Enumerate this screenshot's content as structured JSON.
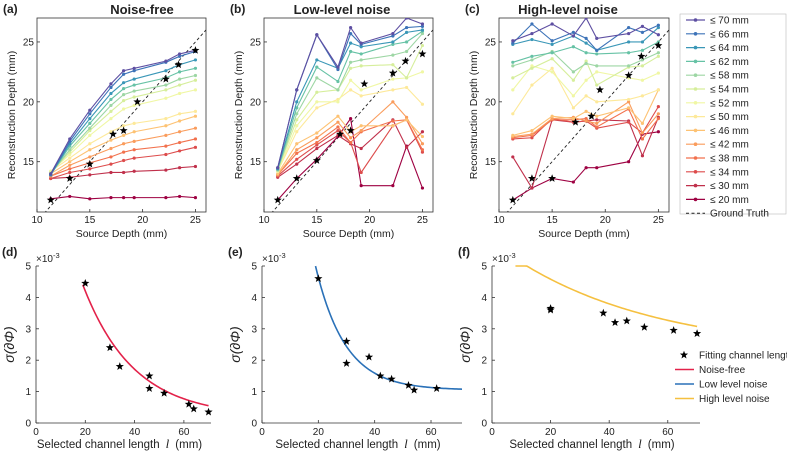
{
  "top_charts": [
    {
      "panel_label": "(a)",
      "title": "Noise-free",
      "type": "line",
      "xlabel": "Source Depth (mm)",
      "ylabel": "Reconstruction Depth (mm)",
      "xlim": [
        10,
        26
      ],
      "ylim": [
        10.8,
        27
      ],
      "xticks": [
        10,
        15,
        20,
        25
      ],
      "yticks": [
        15,
        20,
        25
      ],
      "x": [
        11.3,
        13.1,
        15.0,
        17.0,
        18.2,
        19.2,
        22.2,
        23.5,
        25.0
      ],
      "ground_truth_stars": [
        [
          11.3,
          11.8
        ],
        [
          13.1,
          13.6
        ],
        [
          15.0,
          14.8
        ],
        [
          17.2,
          17.3
        ],
        [
          18.2,
          17.6
        ],
        [
          19.5,
          20.0
        ],
        [
          22.2,
          21.9
        ],
        [
          23.4,
          23.1
        ],
        [
          25.0,
          24.3
        ]
      ],
      "series": [
        {
          "name": "≤ 70 mm",
          "values": [
            14.0,
            16.9,
            19.3,
            21.5,
            22.6,
            22.8,
            23.4,
            24.0,
            24.3
          ]
        },
        {
          "name": "≤ 66 mm",
          "values": [
            13.9,
            16.7,
            19.0,
            21.2,
            22.3,
            22.6,
            23.3,
            23.8,
            24.2
          ]
        },
        {
          "name": "≤ 64 mm",
          "values": [
            13.9,
            16.5,
            18.6,
            20.7,
            21.6,
            21.9,
            22.6,
            23.1,
            23.5
          ]
        },
        {
          "name": "≤ 62 mm",
          "values": [
            13.9,
            16.3,
            18.2,
            20.2,
            21.1,
            21.4,
            22.0,
            22.5,
            22.8
          ]
        },
        {
          "name": "≤ 58 mm",
          "values": [
            14.0,
            16.0,
            17.8,
            19.7,
            20.6,
            20.9,
            21.4,
            21.9,
            22.2
          ]
        },
        {
          "name": "≤ 54 mm",
          "values": [
            14.1,
            15.8,
            17.6,
            19.2,
            20.1,
            20.4,
            21.0,
            21.4,
            21.8
          ]
        },
        {
          "name": "≤ 52 mm",
          "values": [
            14.2,
            15.6,
            17.2,
            18.6,
            19.4,
            19.7,
            20.3,
            20.7,
            21.0
          ]
        },
        {
          "name": "≤ 50 mm",
          "values": [
            14.2,
            15.3,
            16.5,
            17.5,
            18.0,
            18.2,
            18.6,
            19.0,
            19.2
          ]
        },
        {
          "name": "≤ 46 mm",
          "values": [
            14.0,
            15.0,
            16.0,
            16.8,
            17.2,
            17.5,
            18.0,
            18.4,
            18.8
          ]
        },
        {
          "name": "≤ 42 mm",
          "values": [
            13.8,
            14.7,
            15.4,
            16.1,
            16.5,
            16.7,
            17.2,
            17.5,
            17.8
          ]
        },
        {
          "name": "≤ 38 mm",
          "values": [
            13.8,
            14.4,
            14.9,
            15.4,
            15.8,
            16.0,
            16.3,
            16.6,
            16.9
          ]
        },
        {
          "name": "≤ 34 mm",
          "values": [
            13.6,
            14.1,
            14.4,
            14.8,
            15.1,
            15.3,
            15.6,
            15.9,
            16.2
          ]
        },
        {
          "name": "≤ 30 mm",
          "values": [
            13.6,
            13.7,
            13.9,
            14.1,
            14.1,
            14.2,
            14.3,
            14.5,
            14.6
          ]
        },
        {
          "name": "≤ 20 mm",
          "values": [
            11.9,
            12.1,
            11.9,
            12.0,
            12.0,
            12.0,
            12.0,
            12.1,
            12.0
          ]
        }
      ]
    },
    {
      "panel_label": "(b)",
      "title": "Low-level noise",
      "type": "line",
      "xlabel": "Source Depth (mm)",
      "ylabel": "Reconstruction Depth (mm)",
      "xlim": [
        10,
        26
      ],
      "ylim": [
        10.8,
        27
      ],
      "xticks": [
        10,
        15,
        20,
        25
      ],
      "yticks": [
        15,
        20,
        25
      ],
      "x": [
        11.3,
        13.1,
        15.0,
        17.0,
        18.2,
        19.2,
        22.2,
        23.5,
        25.0
      ],
      "ground_truth_stars": [
        [
          11.3,
          11.8
        ],
        [
          13.1,
          13.6
        ],
        [
          15.0,
          15.1
        ],
        [
          17.2,
          17.3
        ],
        [
          18.2,
          17.6
        ],
        [
          19.5,
          21.5
        ],
        [
          22.2,
          22.4
        ],
        [
          23.4,
          23.4
        ],
        [
          25.0,
          24.0
        ]
      ],
      "series": [
        {
          "name": "≤ 70 mm",
          "values": [
            14.5,
            21.0,
            25.6,
            22.9,
            26.2,
            24.9,
            25.7,
            27.0,
            26.5
          ]
        },
        {
          "name": "≤ 66 mm",
          "values": [
            14.5,
            21.0,
            25.6,
            22.7,
            25.7,
            24.8,
            25.5,
            26.2,
            26.3
          ]
        },
        {
          "name": "≤ 64 mm",
          "values": [
            14.4,
            20.0,
            23.5,
            22.8,
            24.9,
            24.6,
            25.0,
            25.8,
            26.0
          ]
        },
        {
          "name": "≤ 62 mm",
          "values": [
            14.4,
            19.5,
            22.9,
            21.7,
            24.2,
            24.0,
            24.8,
            25.0,
            25.9
          ]
        },
        {
          "name": "≤ 58 mm",
          "values": [
            14.3,
            19.0,
            22.0,
            21.0,
            23.3,
            23.5,
            23.9,
            24.2,
            25.7
          ]
        },
        {
          "name": "≤ 54 mm",
          "values": [
            14.3,
            18.5,
            20.8,
            21.0,
            22.8,
            23.0,
            23.1,
            22.0,
            24.7
          ]
        },
        {
          "name": "≤ 52 mm",
          "values": [
            14.2,
            18.0,
            20.0,
            20.0,
            21.8,
            21.0,
            21.9,
            22.0,
            22.5
          ]
        },
        {
          "name": "≤ 50 mm",
          "values": [
            14.2,
            17.5,
            19.5,
            20.2,
            21.0,
            20.5,
            21.0,
            21.2,
            19.8
          ]
        },
        {
          "name": "≤ 46 mm",
          "values": [
            14.0,
            16.5,
            17.4,
            18.8,
            17.5,
            18.0,
            18.0,
            18.5,
            17.1
          ]
        },
        {
          "name": "≤ 42 mm",
          "values": [
            13.9,
            16.0,
            17.0,
            18.3,
            17.0,
            17.6,
            20.0,
            18.7,
            16.5
          ]
        },
        {
          "name": "≤ 38 mm",
          "values": [
            13.9,
            15.7,
            16.6,
            17.9,
            16.6,
            17.5,
            18.4,
            18.5,
            16.0
          ]
        },
        {
          "name": "≤ 34 mm",
          "values": [
            13.8,
            15.2,
            16.4,
            17.6,
            16.6,
            14.1,
            18.0,
            18.5,
            15.8
          ]
        },
        {
          "name": "≤ 30 mm",
          "values": [
            13.7,
            14.8,
            16.1,
            17.2,
            16.5,
            16.1,
            18.5,
            16.2,
            17.5
          ]
        },
        {
          "name": "≤ 20 mm",
          "values": [
            11.8,
            13.6,
            15.2,
            17.1,
            18.6,
            13.0,
            13.0,
            16.3,
            12.8
          ]
        }
      ]
    },
    {
      "panel_label": "(c)",
      "title": "High-level noise",
      "type": "line",
      "xlabel": "Source Depth (mm)",
      "ylabel": "Reconstruction Depth (mm)",
      "xlim": [
        10,
        26
      ],
      "ylim": [
        10.8,
        27
      ],
      "xticks": [
        10,
        15,
        20,
        25
      ],
      "yticks": [
        15,
        20,
        25
      ],
      "x": [
        11.3,
        13.1,
        15.0,
        17.0,
        18.2,
        19.2,
        22.2,
        23.5,
        25.0
      ],
      "ground_truth_stars": [
        [
          11.3,
          11.8
        ],
        [
          13.1,
          13.6
        ],
        [
          15.0,
          13.6
        ],
        [
          17.2,
          18.3
        ],
        [
          18.7,
          18.8
        ],
        [
          19.5,
          21.0
        ],
        [
          22.2,
          22.2
        ],
        [
          23.4,
          23.8
        ],
        [
          25.0,
          24.7
        ]
      ],
      "series": [
        {
          "name": "≤ 70 mm",
          "values": [
            25.1,
            25.7,
            26.5,
            25.5,
            27.0,
            25.3,
            25.7,
            26.3,
            25.6
          ]
        },
        {
          "name": "≤ 66 mm",
          "values": [
            24.9,
            26.5,
            25.1,
            25.8,
            25.3,
            24.3,
            26.2,
            25.8,
            26.4
          ]
        },
        {
          "name": "≤ 64 mm",
          "values": [
            24.8,
            25.2,
            24.8,
            25.5,
            24.9,
            24.3,
            25.0,
            25.0,
            26.2
          ]
        },
        {
          "name": "≤ 62 mm",
          "values": [
            23.3,
            23.8,
            24.1,
            24.6,
            24.1,
            24.0,
            24.1,
            24.3,
            25.0
          ]
        },
        {
          "name": "≤ 58 mm",
          "values": [
            23.0,
            23.5,
            24.2,
            22.5,
            23.2,
            23.0,
            23.0,
            23.5,
            24.1
          ]
        },
        {
          "name": "≤ 54 mm",
          "values": [
            22.0,
            22.8,
            23.6,
            21.8,
            23.4,
            21.4,
            22.9,
            23.0,
            23.8
          ]
        },
        {
          "name": "≤ 52 mm",
          "values": [
            21.0,
            23.0,
            22.5,
            20.5,
            21.8,
            22.5,
            22.0,
            21.8,
            22.4
          ]
        },
        {
          "name": "≤ 50 mm",
          "values": [
            19.0,
            21.4,
            22.8,
            19.5,
            20.5,
            20.0,
            20.2,
            20.5,
            21.0
          ]
        },
        {
          "name": "≤ 46 mm",
          "values": [
            17.2,
            17.6,
            18.8,
            18.6,
            19.2,
            18.8,
            19.5,
            18.2,
            21.0
          ]
        },
        {
          "name": "≤ 42 mm",
          "values": [
            17.1,
            17.3,
            18.6,
            18.7,
            18.4,
            18.2,
            20.0,
            17.4,
            19.0
          ]
        },
        {
          "name": "≤ 38 mm",
          "values": [
            17.0,
            17.2,
            18.5,
            18.5,
            18.6,
            17.9,
            19.4,
            16.9,
            18.6
          ]
        },
        {
          "name": "≤ 34 mm",
          "values": [
            16.9,
            17.0,
            18.6,
            18.3,
            18.4,
            17.8,
            18.3,
            17.4,
            19.6
          ]
        },
        {
          "name": "≤ 30 mm",
          "values": [
            15.4,
            12.8,
            18.5,
            18.3,
            18.4,
            18.5,
            18.4,
            15.5,
            18.7
          ]
        },
        {
          "name": "≤ 20 mm",
          "values": [
            11.8,
            12.8,
            13.6,
            13.3,
            14.5,
            14.5,
            15.0,
            17.3,
            17.5
          ]
        }
      ]
    }
  ],
  "legend_top": {
    "entries": [
      "≤ 70 mm",
      "≤ 66 mm",
      "≤ 64 mm",
      "≤ 62 mm",
      "≤ 58 mm",
      "≤ 54 mm",
      "≤ 52 mm",
      "≤ 50 mm",
      "≤ 46 mm",
      "≤ 42 mm",
      "≤ 38 mm",
      "≤ 34 mm",
      "≤ 30 mm",
      "≤ 20 mm"
    ],
    "ground_truth_label": "Ground Truth",
    "colors": [
      "#5e4fa2",
      "#3d73b8",
      "#3a97b7",
      "#66c2a5",
      "#9dd6a4",
      "#d6ee9b",
      "#f0f7a4",
      "#fde99a",
      "#fdc273",
      "#fa9c5c",
      "#f2714d",
      "#dd4c4c",
      "#c0304b",
      "#9e0142"
    ]
  },
  "bottom_charts": [
    {
      "panel_label": "(d)",
      "type": "scatter",
      "exponent_label": "×10",
      "exponent_power": "-3",
      "xlabel": "Selected channel length",
      "xlabel_symbol": "l",
      "xlabel_unit": "(mm)",
      "ylabel": "σ(∂Φ)",
      "xlim": [
        0,
        71
      ],
      "ylim": [
        0,
        5
      ],
      "xticks": [
        0,
        20,
        40,
        60
      ],
      "yticks": [
        0,
        1,
        2,
        3,
        4,
        5
      ],
      "points_x": [
        20,
        30,
        34,
        46,
        46,
        52,
        62,
        64,
        70
      ],
      "points_y": [
        4.45,
        2.4,
        1.8,
        1.5,
        1.1,
        0.95,
        0.6,
        0.45,
        0.35
      ],
      "fit": {
        "name": "Noise-free",
        "color": "#e3224a",
        "x_start": 19,
        "x_end": 70,
        "model": "a*exp(-b*x)+c",
        "a": 10.6,
        "b": 0.0487,
        "c": 0.2
      }
    },
    {
      "panel_label": "(e)",
      "type": "scatter",
      "exponent_label": "×10",
      "exponent_power": "-3",
      "xlabel": "Selected channel length",
      "xlabel_symbol": "l",
      "xlabel_unit": "(mm)",
      "ylabel": "σ(∂Φ)",
      "xlim": [
        0,
        71
      ],
      "ylim": [
        0,
        5
      ],
      "xticks": [
        0,
        20,
        40,
        60
      ],
      "yticks": [
        0,
        1,
        2,
        3,
        4,
        5
      ],
      "points_x": [
        20,
        30,
        30,
        38,
        42,
        46,
        52,
        54,
        62
      ],
      "points_y": [
        4.6,
        2.6,
        1.9,
        2.1,
        1.5,
        1.4,
        1.2,
        1.05,
        1.1
      ],
      "fit": {
        "name": "Low level noise",
        "color": "#2a71b8",
        "x_start": 19,
        "x_end": 71,
        "model": "a*exp(-b*x)+c",
        "a": 24.0,
        "b": 0.095,
        "c": 1.05
      }
    },
    {
      "panel_label": "(f)",
      "type": "scatter",
      "exponent_label": "×10",
      "exponent_power": "-3",
      "xlabel": "Selected channel length",
      "xlabel_symbol": "l",
      "xlabel_unit": "(mm)",
      "ylabel": "σ(∂Φ)",
      "xlim": [
        0,
        71
      ],
      "ylim": [
        0,
        5
      ],
      "xticks": [
        0,
        20,
        40,
        60
      ],
      "yticks": [
        0,
        1,
        2,
        3,
        4,
        5
      ],
      "points_x": [
        20,
        20,
        38,
        42,
        46,
        52,
        62,
        70
      ],
      "points_y": [
        3.65,
        3.6,
        3.5,
        3.2,
        3.25,
        3.05,
        2.95,
        2.85
      ],
      "fit": {
        "name": "High level noise",
        "color": "#f5c040",
        "x_start": 8,
        "x_end": 70,
        "model": "a*exp(-b*x)+c",
        "a": 3.55,
        "b": 0.02,
        "c": 2.2
      }
    }
  ],
  "legend_bottom": {
    "entries": [
      {
        "label": "Fitting channel length",
        "kind": "star",
        "color": "#000000"
      },
      {
        "label": "Noise-free",
        "kind": "line",
        "color": "#e3224a"
      },
      {
        "label": "Low level noise",
        "kind": "line",
        "color": "#2a71b8"
      },
      {
        "label": "High level noise",
        "kind": "line",
        "color": "#f5c040"
      }
    ]
  }
}
